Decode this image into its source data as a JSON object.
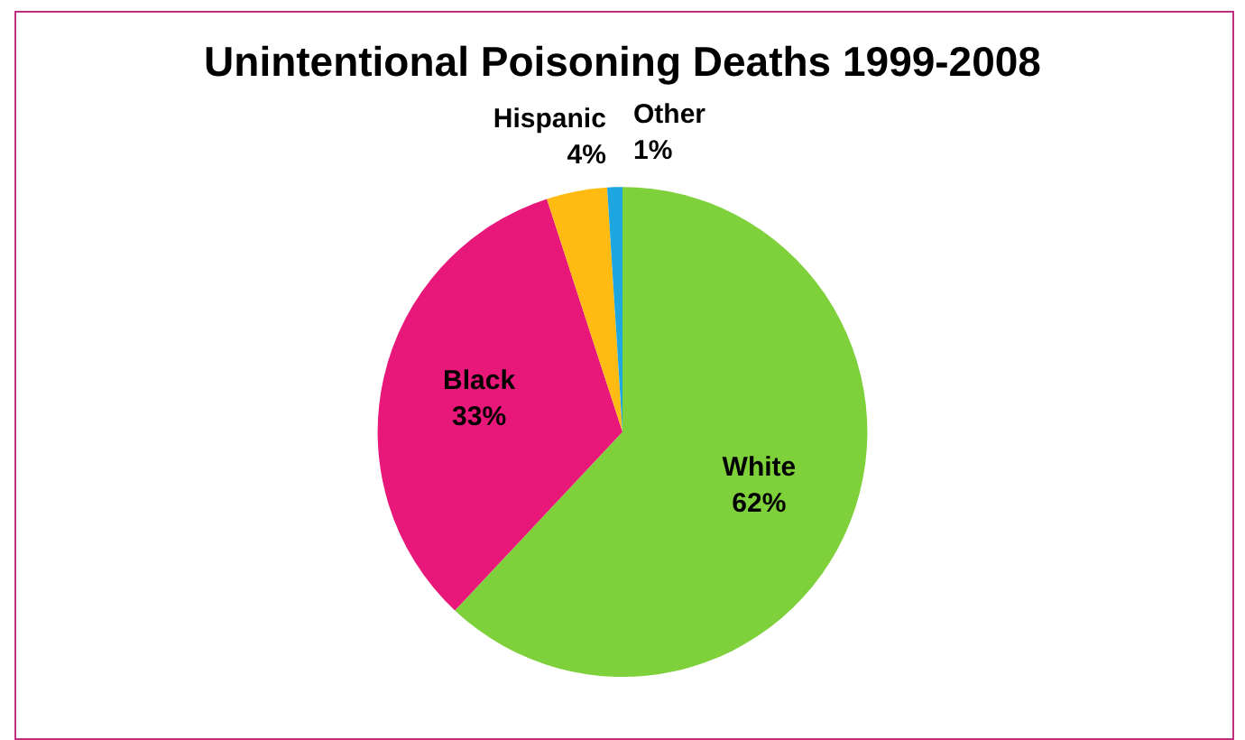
{
  "chart_data": {
    "type": "pie",
    "title": "Unintentional Poisoning Deaths 1999-2008",
    "categories": [
      "White",
      "Black",
      "Hispanic",
      "Other"
    ],
    "values": [
      62,
      33,
      4,
      1
    ],
    "colors": [
      "#7fd13b",
      "#e8177a",
      "#ffbb11",
      "#1ea6e0"
    ],
    "value_labels": [
      "62%",
      "33%",
      "4%",
      "1%"
    ],
    "legend": false
  }
}
